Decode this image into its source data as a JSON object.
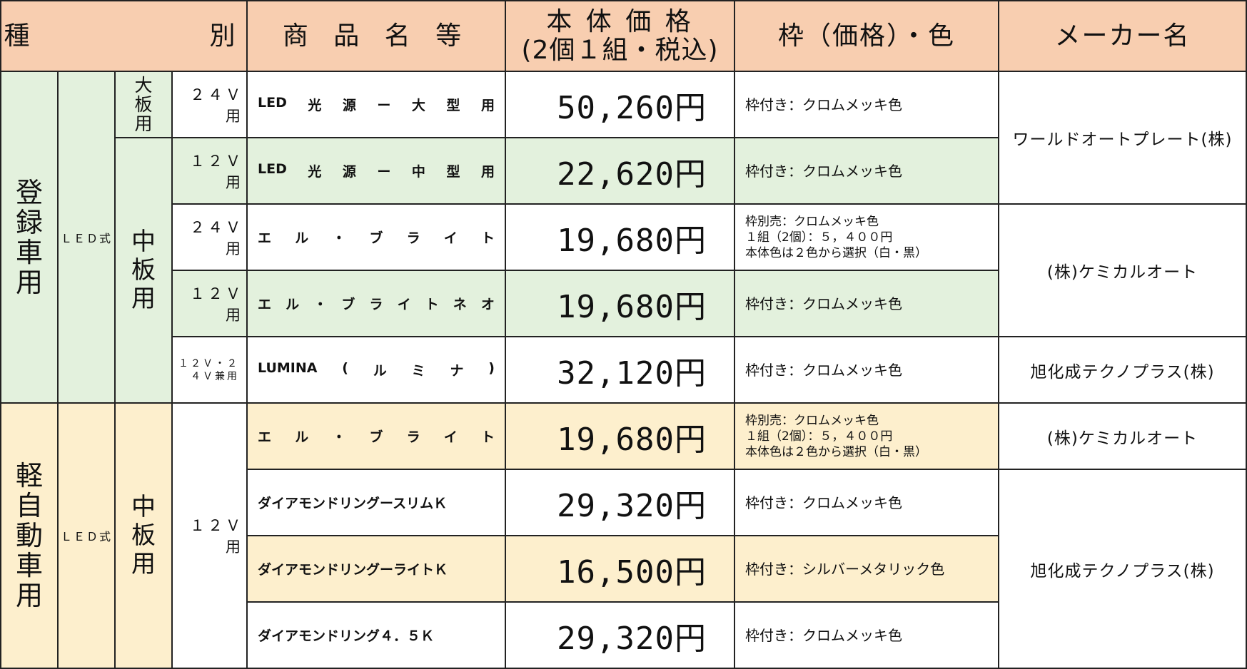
{
  "headers": {
    "category": "種　　　　　別",
    "product_name": "商 品 名 等",
    "price_line1": "本 体 価 格",
    "price_line2": "(2個１組・税込)",
    "frame_color": "枠（価格）・色",
    "maker": "メーカー名"
  },
  "groups": {
    "registered": "登録車用",
    "kei": "軽自動車用",
    "led_type": "ＬＥＤ式",
    "large_plate": "大板用",
    "medium_plate": "中板用",
    "v24": "２４Ｖ用",
    "v12": "１２Ｖ用",
    "v_both": "１２Ｖ・２４Ｖ兼用"
  },
  "rows": [
    {
      "product": [
        "LED",
        "光",
        "源",
        "ー",
        "大",
        "型",
        "用"
      ],
      "price": "50,260円",
      "frame": [
        "枠付き：クロムメッキ色"
      ]
    },
    {
      "product": [
        "LED",
        "光",
        "源",
        "ー",
        "中",
        "型",
        "用"
      ],
      "price": "22,620円",
      "frame": [
        "枠付き：クロムメッキ色"
      ]
    },
    {
      "product": [
        "エ",
        "ル",
        "・",
        "ブ",
        "ラ",
        "イ",
        "ト"
      ],
      "price": "19,680円",
      "frame": [
        "枠別売：クロムメッキ色",
        "１組（2個）：５，４００円",
        "本体色は２色から選択（白・黒）"
      ]
    },
    {
      "product": [
        "エ",
        "ル",
        "・",
        "ブ",
        "ラ",
        "イ",
        "ト",
        "ネ",
        "オ"
      ],
      "price": "19,680円",
      "frame": [
        "枠付き：クロムメッキ色"
      ]
    },
    {
      "product": [
        "LUMINA",
        "(",
        "ル",
        "ミ",
        "ナ",
        ")"
      ],
      "price": "32,120円",
      "frame": [
        "枠付き：クロムメッキ色"
      ]
    },
    {
      "product": [
        "エ",
        "ル",
        "・",
        "ブ",
        "ラ",
        "イ",
        "ト"
      ],
      "price": "19,680円",
      "frame": [
        "枠別売：クロムメッキ色",
        "１組（2個）：５，４００円",
        "本体色は２色から選択（白・黒）"
      ]
    },
    {
      "product": [
        "ダイアモンドリングースリムＫ"
      ],
      "price": "29,320円",
      "frame": [
        "枠付き：クロムメッキ色"
      ]
    },
    {
      "product": [
        "ダイアモンドリングーライトＫ"
      ],
      "price": "16,500円",
      "frame": [
        "枠付き：シルバーメタリック色"
      ]
    },
    {
      "product": [
        "ダイアモンドリング４．５Ｋ"
      ],
      "price": "29,320円",
      "frame": [
        "枠付き：クロムメッキ色"
      ]
    }
  ],
  "makers": {
    "world_auto_plate": "ワールドオートプレート(株)",
    "chemical_auto_1": "(株)ケミカルオート",
    "asahi_1": "旭化成テクノプラス(株)",
    "chemical_auto_2": "(株)ケミカルオート",
    "asahi_2": "旭化成テクノプラス(株)"
  },
  "colors": {
    "header_bg": "#f8ceb0",
    "registered_bg": "#e3f1dd",
    "kei_bg": "#fdefcd",
    "border": "#222222"
  }
}
